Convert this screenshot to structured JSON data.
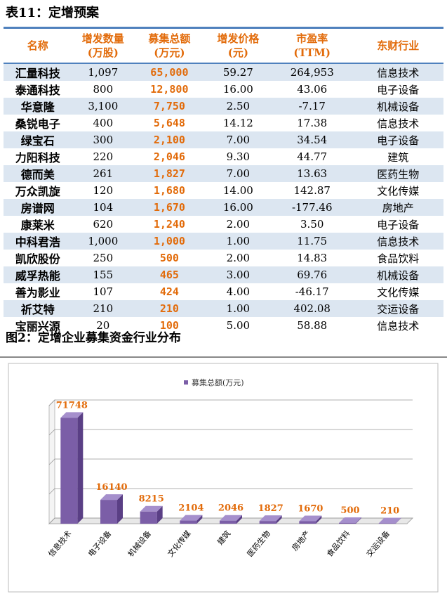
{
  "table": {
    "title": "表11：定增预案",
    "headers": [
      [
        "名称"
      ],
      [
        "增发数量",
        "(万股)"
      ],
      [
        "募集总额",
        "(万元)"
      ],
      [
        "增发价格",
        "(元)"
      ],
      [
        "市盈率",
        "(TTM)"
      ],
      [
        "东财行业"
      ]
    ],
    "rows": [
      [
        "汇量科技",
        "1,097",
        "65,000",
        "59.27",
        "264,953",
        "信息技术"
      ],
      [
        "泰通科技",
        "800",
        "12,800",
        "16.00",
        "43.06",
        "电子设备"
      ],
      [
        "华意隆",
        "3,100",
        "7,750",
        "2.50",
        "-7.17",
        "机械设备"
      ],
      [
        "桑锐电子",
        "400",
        "5,648",
        "14.12",
        "17.38",
        "信息技术"
      ],
      [
        "绿宝石",
        "300",
        "2,100",
        "7.00",
        "34.54",
        "电子设备"
      ],
      [
        "力阳科技",
        "220",
        "2,046",
        "9.30",
        "44.77",
        "建筑"
      ],
      [
        "德而美",
        "261",
        "1,827",
        "7.00",
        "13.63",
        "医药生物"
      ],
      [
        "万众凯旋",
        "120",
        "1,680",
        "14.00",
        "142.87",
        "文化传媒"
      ],
      [
        "房谱网",
        "104",
        "1,670",
        "16.00",
        "-177.46",
        "房地产"
      ],
      [
        "康莱米",
        "620",
        "1,240",
        "2.00",
        "3.50",
        "电子设备"
      ],
      [
        "中科君浩",
        "1,000",
        "1,000",
        "1.00",
        "11.75",
        "信息技术"
      ],
      [
        "凯欣股份",
        "250",
        "500",
        "2.00",
        "14.83",
        "食品饮料"
      ],
      [
        "威孚热能",
        "155",
        "465",
        "3.00",
        "69.76",
        "机械设备"
      ],
      [
        "善为影业",
        "107",
        "424",
        "4.00",
        "-46.17",
        "文化传媒"
      ],
      [
        "祈艾特",
        "210",
        "210",
        "1.00",
        "402.08",
        "交运设备"
      ],
      [
        "宝丽兴源",
        "20",
        "100",
        "5.00",
        "58.88",
        "信息技术"
      ]
    ]
  },
  "figure_title": "图2：定增企业募集资金行业分布",
  "chart_data": {
    "type": "bar",
    "categories": [
      "信息技术",
      "电子设备",
      "机械设备",
      "文化传媒",
      "建筑",
      "医药生物",
      "房地产",
      "食品饮料",
      "交运设备"
    ],
    "series": [
      {
        "name": "募集总额(万元)",
        "color": "#7b5ea7",
        "values": [
          71748,
          16140,
          8215,
          2104,
          2046,
          1827,
          1670,
          500,
          210
        ]
      }
    ],
    "label_color": "#e26b0a",
    "ylim": [
      0,
      80000
    ],
    "yticks": [
      0,
      20000,
      40000,
      60000,
      80000
    ],
    "grid": true
  }
}
